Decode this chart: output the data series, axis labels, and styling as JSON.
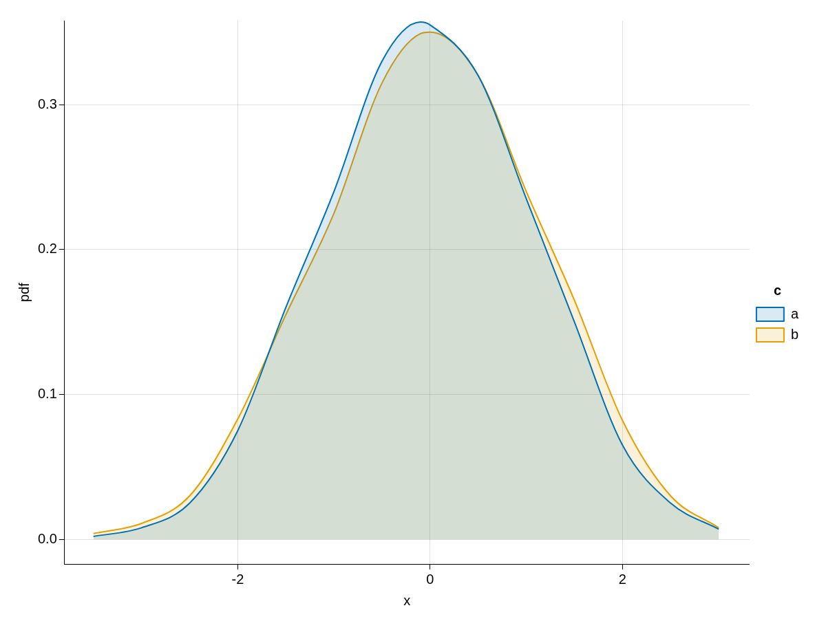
{
  "chart_data": {
    "type": "area",
    "xlabel": "x",
    "ylabel": "pdf",
    "legend_title": "c",
    "legend": "right",
    "grid": true,
    "x": [
      -3.5,
      -3,
      -2.5,
      -2,
      -1.5,
      -1,
      -0.5,
      -0.1,
      0,
      0.5,
      1,
      1.5,
      2,
      2.5,
      3
    ],
    "xlim": [
      -3.8,
      3.32
    ],
    "xticks": [
      -2,
      0,
      2
    ],
    "ylim": [
      -0.017,
      0.358
    ],
    "yticks": [
      {
        "value": 0,
        "label": "0.0"
      },
      {
        "value": 0.1,
        "label": "0.1"
      },
      {
        "value": 0.2,
        "label": "0.2"
      },
      {
        "value": 0.3,
        "label": "0.3"
      }
    ],
    "series": [
      {
        "name": "a",
        "color": "#0072b2",
        "values": [
          0.002,
          0.008,
          0.025,
          0.075,
          0.16,
          0.24,
          0.33,
          0.357,
          0.355,
          0.32,
          0.235,
          0.15,
          0.065,
          0.025,
          0.007
        ]
      },
      {
        "name": "b",
        "color": "#e69f00",
        "values": [
          0.004,
          0.011,
          0.03,
          0.083,
          0.155,
          0.225,
          0.315,
          0.349,
          0.35,
          0.32,
          0.24,
          0.165,
          0.082,
          0.03,
          0.008
        ]
      }
    ]
  }
}
